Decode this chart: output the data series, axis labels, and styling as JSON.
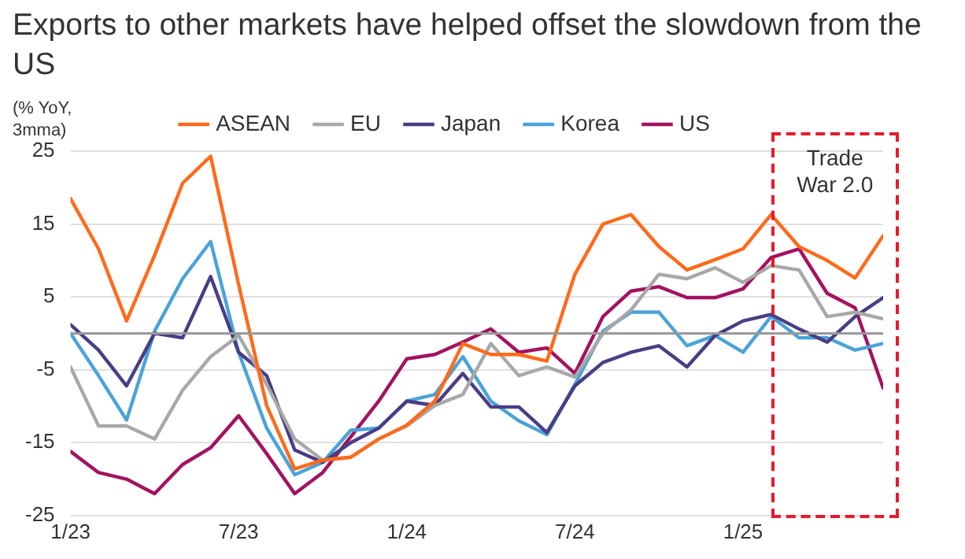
{
  "chart_data": {
    "type": "line",
    "title": "Exports to other markets have helped offset the slowdown from the US",
    "ylabel": "(% YoY, 3mma)",
    "x": [
      "2023-01",
      "2023-02",
      "2023-03",
      "2023-04",
      "2023-05",
      "2023-06",
      "2023-07",
      "2023-08",
      "2023-09",
      "2023-10",
      "2023-11",
      "2023-12",
      "2024-01",
      "2024-02",
      "2024-03",
      "2024-04",
      "2024-05",
      "2024-06",
      "2024-07",
      "2024-08",
      "2024-09",
      "2024-10",
      "2024-11",
      "2024-12",
      "2025-01",
      "2025-02",
      "2025-03",
      "2025-04",
      "2025-05",
      "2025-06"
    ],
    "xlim": [
      "2023-01",
      "2025-06"
    ],
    "xticks": [
      {
        "value": "2023-01",
        "label": "1/23"
      },
      {
        "value": "2023-07",
        "label": "7/23"
      },
      {
        "value": "2024-01",
        "label": "1/24"
      },
      {
        "value": "2024-07",
        "label": "7/24"
      },
      {
        "value": "2025-01",
        "label": "1/25"
      }
    ],
    "ylim": [
      -25,
      25
    ],
    "yticks": [
      -25,
      -15,
      -5,
      5,
      15,
      25
    ],
    "grid": "y",
    "legend": "top",
    "marker": "none",
    "line_style": "solid",
    "series": [
      {
        "name": "ASEAN",
        "color": "#ff6a1a",
        "values": [
          18.5,
          11.6,
          1.7,
          10.7,
          20.6,
          24.3,
          6.7,
          -9.9,
          -18.6,
          -17.4,
          -17,
          -14.5,
          -12.6,
          -9.3,
          -1.4,
          -2.9,
          -2.9,
          -3.8,
          8.1,
          15,
          16.3,
          11.9,
          8.7,
          10.1,
          11.6,
          16.3,
          11.9,
          10,
          7.6,
          13.4
        ]
      },
      {
        "name": "EU",
        "color": "#a8a8a8",
        "values": [
          -4.6,
          -12.7,
          -12.7,
          -14.5,
          -7.8,
          -3.2,
          -0.3,
          -7,
          -14.5,
          -17.4,
          -17,
          -14.5,
          -12.7,
          -9.9,
          -8.4,
          -1.4,
          -5.8,
          -4.6,
          -6,
          0,
          3.2,
          8.1,
          7.5,
          9,
          7,
          9.3,
          8.7,
          2.3,
          2.9,
          2
        ]
      },
      {
        "name": "Japan",
        "color": "#4a3d85",
        "values": [
          1.2,
          -2.3,
          -7.2,
          0,
          -0.6,
          7.8,
          -2.6,
          -5.8,
          -16,
          -17.7,
          -15,
          -13,
          -9.3,
          -9.9,
          -5.5,
          -10.1,
          -10.1,
          -13.6,
          -7.2,
          -4,
          -2.6,
          -1.7,
          -4.6,
          -0.3,
          1.7,
          2.6,
          0.6,
          -1.2,
          2.3,
          4.9
        ]
      },
      {
        "name": "Korea",
        "color": "#4aa3d8",
        "values": [
          0,
          -5.8,
          -11.9,
          0.3,
          7.5,
          12.6,
          -2.6,
          -13,
          -19.4,
          -17.7,
          -13.3,
          -13,
          -9.3,
          -8.4,
          -3.2,
          -9.3,
          -12,
          -13.9,
          -7,
          0.3,
          2.9,
          2.9,
          -1.7,
          -0.3,
          -2.6,
          2.3,
          -0.6,
          -0.6,
          -2.3,
          -1.4
        ]
      },
      {
        "name": "US",
        "color": "#a3125f",
        "values": [
          -16.2,
          -19.1,
          -20,
          -22,
          -18,
          -15.7,
          -11.3,
          -16.5,
          -22,
          -19.1,
          -14.2,
          -9.3,
          -3.5,
          -2.9,
          -1.2,
          0.6,
          -2.6,
          -2,
          -5.5,
          2.3,
          5.8,
          6.4,
          4.9,
          4.9,
          6.1,
          10.4,
          11.6,
          5.5,
          3.5,
          -7.5
        ]
      }
    ],
    "ref_lines": [
      {
        "axis": "y",
        "value": 0,
        "color": "#999999"
      }
    ],
    "annotations": [
      "Trade War 2.0"
    ]
  }
}
